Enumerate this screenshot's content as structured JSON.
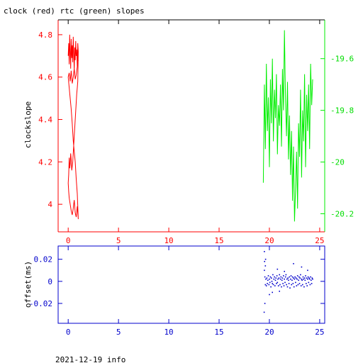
{
  "title": "clock (red) rtc (green) slopes",
  "footer": "2021-12-19 info",
  "colors": {
    "red": "#ff0000",
    "green": "#00ee00",
    "blue": "#0000cc",
    "frame": "#000000"
  },
  "chart_data": [
    {
      "type": "line",
      "name": "slopes",
      "ylabel": "clockslope",
      "xlim": [
        -1,
        25.5
      ],
      "xticks": [
        0,
        5,
        10,
        15,
        20,
        25
      ],
      "ylim_left": [
        3.87,
        4.87
      ],
      "yticks_left": [
        4,
        4.2,
        4.4,
        4.6,
        4.8
      ],
      "ylim_right": [
        -20.27,
        -19.45
      ],
      "yticks_right": [
        -20.2,
        -20,
        -19.8,
        -19.6
      ],
      "grid": false,
      "series": [
        {
          "axis": "left",
          "color": "red",
          "x": [
            0.0,
            0.05,
            0.1,
            0.15,
            0.2,
            0.25,
            0.3,
            0.35,
            0.4,
            0.45,
            0.5,
            0.55,
            0.6,
            0.65,
            0.7,
            0.75,
            0.8,
            0.85,
            0.9,
            0.95,
            1.0,
            0.95,
            0.9,
            0.85,
            0.8,
            0.75,
            0.7,
            0.65,
            0.6,
            0.55,
            0.5,
            0.45,
            0.4,
            0.35,
            0.3,
            0.25,
            0.2,
            0.15,
            0.1,
            0.05,
            0.0,
            0.05,
            0.1,
            0.2,
            0.3,
            0.4,
            0.5,
            0.6,
            0.7,
            0.8,
            0.9,
            1.0,
            0.9,
            0.8,
            0.7,
            0.6,
            0.5,
            0.4,
            0.3,
            0.2,
            0.1,
            0.0,
            0.1,
            0.2,
            0.3,
            0.4,
            0.5,
            0.6,
            0.7,
            0.8,
            0.9,
            1.0
          ],
          "y": [
            4.7,
            4.76,
            4.66,
            4.8,
            4.72,
            4.64,
            4.78,
            4.69,
            4.75,
            4.67,
            4.79,
            4.71,
            4.63,
            4.74,
            4.68,
            4.77,
            4.7,
            4.73,
            4.65,
            4.76,
            4.72,
            4.58,
            4.55,
            4.52,
            4.48,
            4.44,
            4.4,
            4.36,
            4.32,
            4.28,
            4.24,
            4.2,
            4.18,
            4.16,
            4.21,
            4.24,
            4.19,
            4.17,
            4.22,
            4.14,
            4.1,
            4.06,
            4.03,
            4.0,
            3.97,
            3.95,
            3.98,
            4.02,
            3.96,
            3.94,
            3.99,
            3.93,
            4.05,
            4.12,
            4.2,
            4.25,
            4.3,
            4.38,
            4.45,
            4.5,
            4.55,
            4.6,
            4.62,
            4.58,
            4.63,
            4.57,
            4.6,
            4.64,
            4.59,
            4.61,
            4.65,
            4.68
          ]
        },
        {
          "axis": "right",
          "color": "green",
          "x": [
            19.4,
            19.5,
            19.6,
            19.7,
            19.8,
            19.9,
            20.0,
            20.1,
            20.2,
            20.3,
            20.4,
            20.5,
            20.6,
            20.7,
            20.8,
            20.9,
            21.0,
            21.1,
            21.2,
            21.3,
            21.4,
            21.5,
            21.6,
            21.7,
            21.8,
            21.9,
            22.0,
            22.1,
            22.2,
            22.3,
            22.4,
            22.5,
            22.6,
            22.7,
            22.8,
            22.9,
            23.0,
            23.1,
            23.2,
            23.3,
            23.4,
            23.5,
            23.6,
            23.7,
            23.8,
            23.9,
            24.0,
            24.1,
            24.2,
            24.3
          ],
          "y": [
            -20.08,
            -19.7,
            -19.95,
            -19.62,
            -19.88,
            -19.75,
            -20.02,
            -19.68,
            -19.85,
            -19.6,
            -19.92,
            -19.72,
            -19.83,
            -19.66,
            -19.97,
            -19.78,
            -19.86,
            -19.7,
            -19.94,
            -19.64,
            -19.8,
            -19.49,
            -19.76,
            -19.9,
            -19.69,
            -19.99,
            -19.82,
            -20.05,
            -19.88,
            -20.15,
            -19.94,
            -20.23,
            -20.1,
            -19.96,
            -20.18,
            -19.85,
            -19.98,
            -19.72,
            -20.06,
            -19.8,
            -19.92,
            -19.66,
            -20.02,
            -19.74,
            -19.88,
            -19.7,
            -19.95,
            -19.62,
            -19.78,
            -19.68
          ]
        }
      ]
    },
    {
      "type": "scatter",
      "name": "offset",
      "ylabel": "offset(ms)",
      "xlim": [
        -1,
        25.5
      ],
      "xticks": [
        0,
        5,
        10,
        15,
        20,
        25
      ],
      "ylim": [
        -0.038,
        0.032
      ],
      "yticks": [
        -0.02,
        0,
        0.02
      ],
      "grid": false,
      "series": [
        {
          "color": "blue",
          "x": [
            19.5,
            19.55,
            19.6,
            19.65,
            19.7,
            19.75,
            19.8,
            19.85,
            19.9,
            19.95,
            20.0,
            20.05,
            20.1,
            20.15,
            20.2,
            20.25,
            20.3,
            20.35,
            20.4,
            20.45,
            20.5,
            20.55,
            20.6,
            20.65,
            20.7,
            20.75,
            20.8,
            20.85,
            20.9,
            20.95,
            21.0,
            21.05,
            21.1,
            21.15,
            21.2,
            21.25,
            21.3,
            21.35,
            21.4,
            21.45,
            21.5,
            21.55,
            21.6,
            21.65,
            21.7,
            21.75,
            21.8,
            21.85,
            21.9,
            21.95,
            22.0,
            22.05,
            22.1,
            22.15,
            22.2,
            22.25,
            22.3,
            22.35,
            22.4,
            22.45,
            22.5,
            22.55,
            22.6,
            22.65,
            22.7,
            22.75,
            22.8,
            22.85,
            22.9,
            22.95,
            23.0,
            23.05,
            23.1,
            23.15,
            23.2,
            23.25,
            23.3,
            23.35,
            23.4,
            23.45,
            23.5,
            23.55,
            23.6,
            23.65,
            23.7,
            23.75,
            23.8,
            23.85,
            23.9,
            23.95,
            24.0,
            24.05,
            24.1,
            24.15,
            24.2,
            24.25,
            24.3,
            19.5,
            19.52,
            19.55,
            19.6,
            20.0,
            20.8,
            21.5,
            22.4,
            23.2,
            23.8,
            19.48,
            19.62,
            20.3,
            21.0
          ],
          "y": [
            0.01,
            0.004,
            -0.003,
            0.002,
            -0.004,
            0.003,
            -0.002,
            0.001,
            0.005,
            -0.003,
            0.002,
            -0.001,
            0.004,
            -0.005,
            0.003,
            0.0,
            -0.002,
            0.006,
            -0.003,
            0.002,
            0.004,
            -0.004,
            0.001,
            0.003,
            -0.002,
            0.005,
            -0.001,
            0.002,
            -0.004,
            0.003,
            0.006,
            -0.003,
            0.002,
            0.004,
            -0.005,
            0.001,
            0.003,
            -0.002,
            0.005,
            -0.004,
            0.002,
            -0.001,
            0.004,
            0.006,
            -0.003,
            0.002,
            -0.005,
            0.003,
            0.001,
            -0.002,
            0.004,
            -0.006,
            0.002,
            0.005,
            -0.003,
            0.001,
            0.004,
            -0.002,
            0.003,
            -0.005,
            0.002,
            0.004,
            -0.001,
            0.003,
            -0.004,
            0.002,
            0.005,
            -0.003,
            0.001,
            0.004,
            -0.002,
            0.003,
            0.006,
            -0.004,
            0.002,
            0.001,
            -0.003,
            0.004,
            0.002,
            -0.005,
            0.003,
            0.001,
            0.005,
            -0.002,
            0.003,
            -0.004,
            0.002,
            0.004,
            -0.001,
            0.003,
            0.002,
            -0.003,
            0.004,
            0.001,
            -0.002,
            0.003,
            0.002,
            0.027,
            0.018,
            -0.02,
            0.014,
            -0.012,
            0.011,
            0.009,
            0.016,
            0.013,
            0.01,
            -0.028,
            0.02,
            -0.01,
            -0.009
          ]
        }
      ]
    }
  ]
}
